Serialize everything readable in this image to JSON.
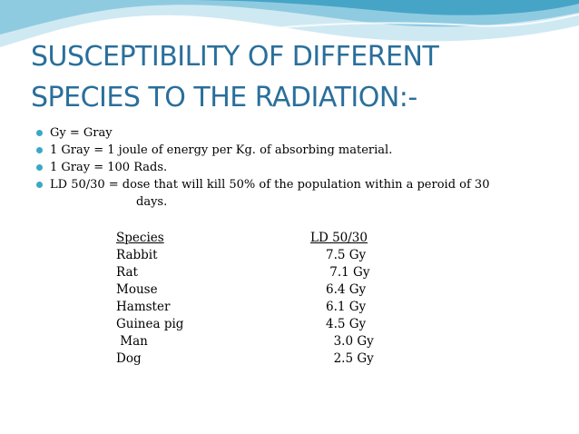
{
  "slide": {
    "title_lines": [
      "SUSCEPTIBILITY OF DIFFERENT",
      "SPECIES TO THE RADIATION:-"
    ],
    "bullets": [
      "Gy = Gray",
      "1 Gray = 1 joule of energy per Kg. of absorbing material.",
      "1 Gray = 100 Rads.",
      "LD 50/30 = dose that will kill 50% of the population within a peroid of 30"
    ],
    "bullet_continuation": "days.",
    "table": {
      "headers": [
        "Species",
        "LD 50/30"
      ],
      "rows": [
        [
          "Rabbit",
          "7.5 Gy"
        ],
        [
          "Rat",
          " 7.1 Gy"
        ],
        [
          "Mouse",
          "6.4 Gy"
        ],
        [
          "Hamster",
          "6.1 Gy"
        ],
        [
          "Guinea pig",
          "4.5 Gy"
        ],
        [
          " Man",
          "  3.0 Gy"
        ],
        [
          "Dog",
          "  2.5 Gy"
        ]
      ]
    },
    "colors": {
      "title": "#2a6f9b",
      "bullet": "#3aa8c7",
      "wave_light": "#cfe9f3",
      "wave_mid": "#8fcbe0",
      "wave_dark": "#3a9ec2"
    }
  }
}
